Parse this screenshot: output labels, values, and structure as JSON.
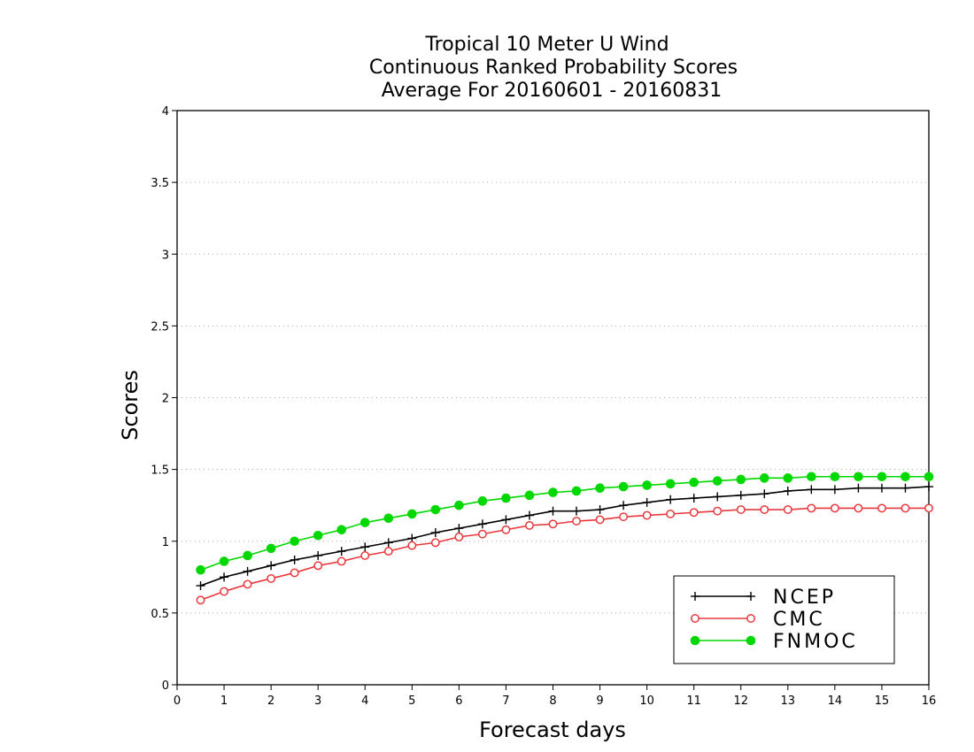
{
  "chart_data": {
    "type": "line",
    "title": [
      "Tropical 10 Meter U Wind",
      "Continuous Ranked Probability Scores",
      "Average For 20160601 - 20160831"
    ],
    "xlabel": "Forecast days",
    "ylabel": "Scores",
    "xlim": [
      0,
      16
    ],
    "ylim": [
      0,
      4
    ],
    "xticks": [
      "0",
      "1",
      "2",
      "3",
      "4",
      "5",
      "6",
      "7",
      "8",
      "9",
      "10",
      "11",
      "12",
      "13",
      "14",
      "15",
      "16"
    ],
    "yticks": [
      "0",
      "0.5",
      "1",
      "1.5",
      "2",
      "2.5",
      "3",
      "3.5",
      "4"
    ],
    "grid": "horizontal dotted",
    "legend_position": "bottom-right",
    "x": [
      0.5,
      1,
      1.5,
      2,
      2.5,
      3,
      3.5,
      4,
      4.5,
      5,
      5.5,
      6,
      6.5,
      7,
      7.5,
      8,
      8.5,
      9,
      9.5,
      10,
      10.5,
      11,
      11.5,
      12,
      12.5,
      13,
      13.5,
      14,
      14.5,
      15,
      15.5,
      16
    ],
    "series": [
      {
        "name": "NCEP",
        "color": "#000000",
        "marker": "plus",
        "values": [
          0.69,
          0.75,
          0.79,
          0.83,
          0.87,
          0.9,
          0.93,
          0.96,
          0.99,
          1.02,
          1.06,
          1.09,
          1.12,
          1.15,
          1.18,
          1.21,
          1.21,
          1.22,
          1.25,
          1.27,
          1.29,
          1.3,
          1.31,
          1.32,
          1.33,
          1.35,
          1.36,
          1.36,
          1.37,
          1.37,
          1.37,
          1.38
        ]
      },
      {
        "name": "CMC",
        "color": "#e8393e",
        "marker": "open-circle",
        "values": [
          0.59,
          0.65,
          0.7,
          0.74,
          0.78,
          0.83,
          0.86,
          0.9,
          0.93,
          0.97,
          0.99,
          1.03,
          1.05,
          1.08,
          1.11,
          1.12,
          1.14,
          1.15,
          1.17,
          1.18,
          1.19,
          1.2,
          1.21,
          1.22,
          1.22,
          1.22,
          1.23,
          1.23,
          1.23,
          1.23,
          1.23,
          1.23
        ]
      },
      {
        "name": "FNMOC",
        "color": "#00d800",
        "marker": "filled-circle",
        "values": [
          0.8,
          0.86,
          0.9,
          0.95,
          1.0,
          1.04,
          1.08,
          1.13,
          1.16,
          1.19,
          1.22,
          1.25,
          1.28,
          1.3,
          1.32,
          1.34,
          1.35,
          1.37,
          1.38,
          1.39,
          1.4,
          1.41,
          1.42,
          1.43,
          1.44,
          1.44,
          1.45,
          1.45,
          1.45,
          1.45,
          1.45,
          1.45
        ]
      }
    ]
  }
}
